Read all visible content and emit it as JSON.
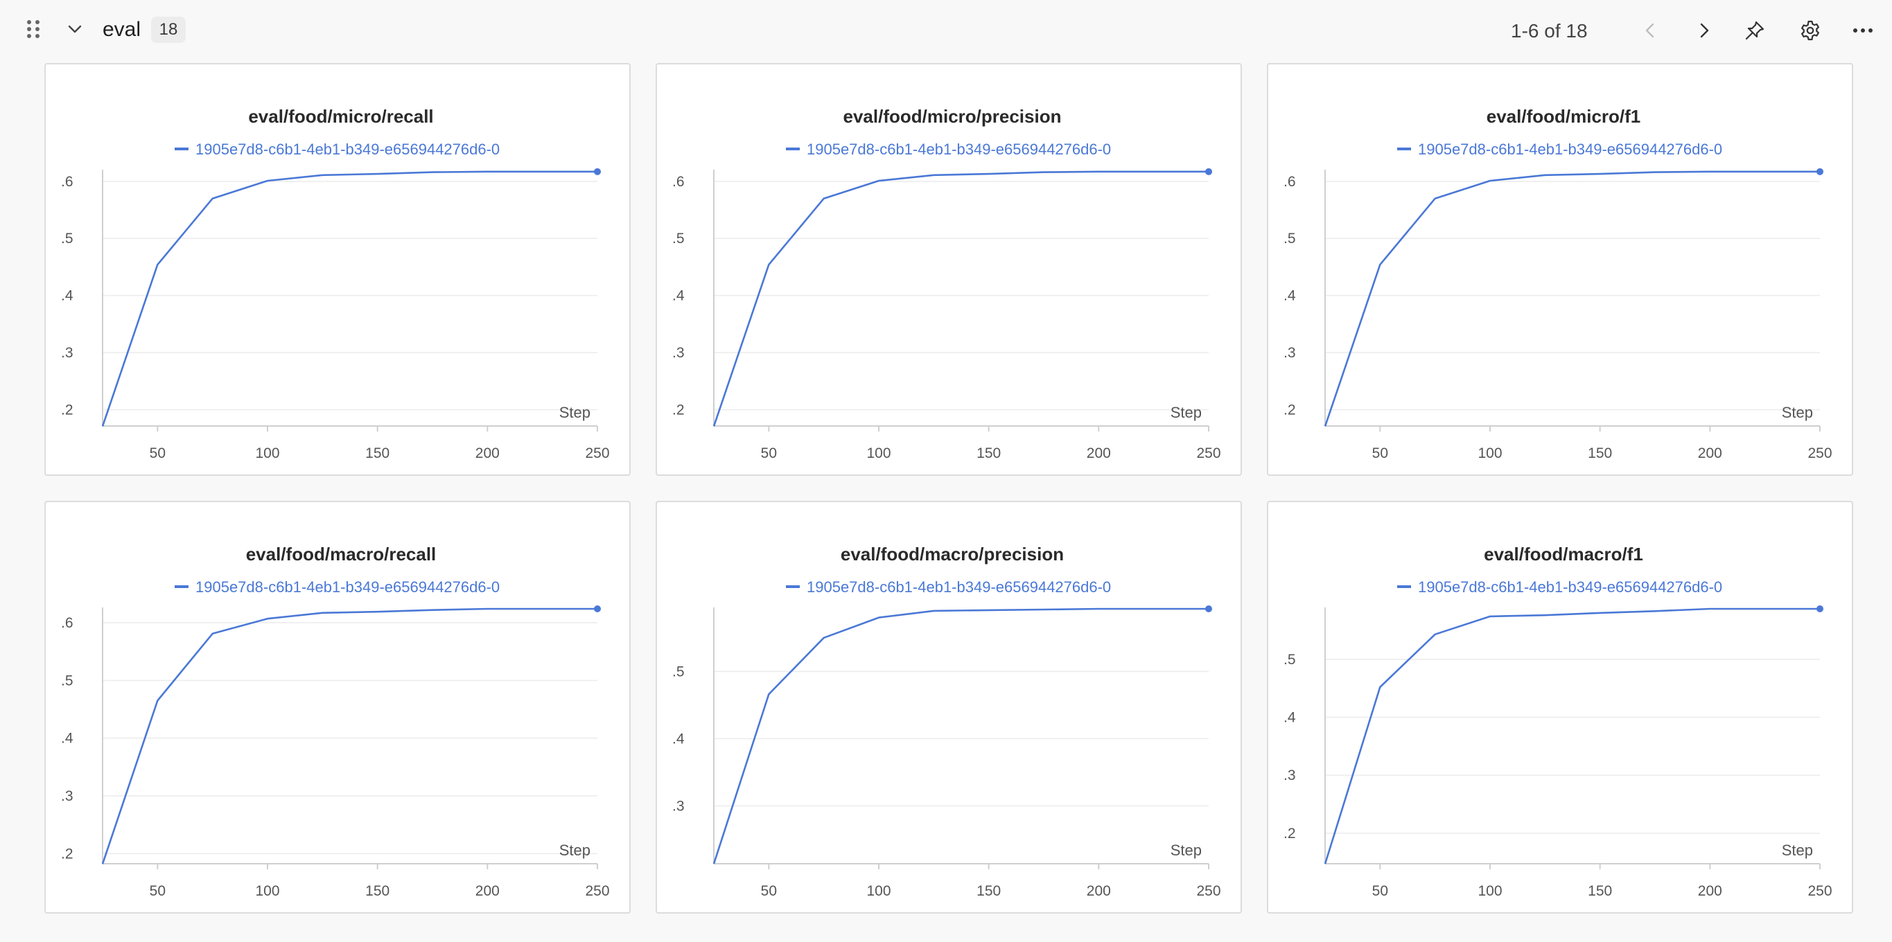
{
  "section": {
    "title": "eval",
    "count": "18",
    "pagination": "1-6 of 18",
    "icons": {
      "drag": "drag-handle-icon",
      "collapse": "chevron-down-icon",
      "prev": "chevron-left-icon",
      "next": "chevron-right-icon",
      "pin": "pin-icon",
      "settings": "gear-icon",
      "more": "more-horizontal-icon"
    }
  },
  "colors": {
    "series": "#4a78d6",
    "grid": "#ebebeb",
    "axis": "#cfcfcf"
  },
  "chart_data": [
    {
      "type": "line",
      "title": "eval/food/micro/recall",
      "xlabel": "Step",
      "x_ticks": [
        50,
        100,
        150,
        200,
        250
      ],
      "y_ticks": [
        0.2,
        0.3,
        0.4,
        0.5,
        0.6
      ],
      "y_tick_labels": [
        ".2",
        ".3",
        ".4",
        ".5",
        ".6"
      ],
      "xlim": [
        25,
        250
      ],
      "ylim": [
        0.169,
        0.618
      ],
      "legend": "top-center",
      "series": [
        {
          "name": "1905e7d8-c6b1-4eb1-b349-e656944276d6-0",
          "x": [
            25,
            50,
            75,
            100,
            125,
            150,
            175,
            200,
            225,
            250
          ],
          "y": [
            0.171,
            0.454,
            0.57,
            0.601,
            0.611,
            0.613,
            0.616,
            0.617,
            0.617,
            0.617
          ]
        }
      ]
    },
    {
      "type": "line",
      "title": "eval/food/micro/precision",
      "xlabel": "Step",
      "x_ticks": [
        50,
        100,
        150,
        200,
        250
      ],
      "y_ticks": [
        0.2,
        0.3,
        0.4,
        0.5,
        0.6
      ],
      "y_tick_labels": [
        ".2",
        ".3",
        ".4",
        ".5",
        ".6"
      ],
      "xlim": [
        25,
        250
      ],
      "ylim": [
        0.169,
        0.618
      ],
      "legend": "top-center",
      "series": [
        {
          "name": "1905e7d8-c6b1-4eb1-b349-e656944276d6-0",
          "x": [
            25,
            50,
            75,
            100,
            125,
            150,
            175,
            200,
            225,
            250
          ],
          "y": [
            0.171,
            0.454,
            0.57,
            0.601,
            0.611,
            0.613,
            0.616,
            0.617,
            0.617,
            0.617
          ]
        }
      ]
    },
    {
      "type": "line",
      "title": "eval/food/micro/f1",
      "xlabel": "Step",
      "x_ticks": [
        50,
        100,
        150,
        200,
        250
      ],
      "y_ticks": [
        0.2,
        0.3,
        0.4,
        0.5,
        0.6
      ],
      "y_tick_labels": [
        ".2",
        ".3",
        ".4",
        ".5",
        ".6"
      ],
      "xlim": [
        25,
        250
      ],
      "ylim": [
        0.169,
        0.618
      ],
      "legend": "top-center",
      "series": [
        {
          "name": "1905e7d8-c6b1-4eb1-b349-e656944276d6-0",
          "x": [
            25,
            50,
            75,
            100,
            125,
            150,
            175,
            200,
            225,
            250
          ],
          "y": [
            0.171,
            0.454,
            0.57,
            0.601,
            0.611,
            0.613,
            0.616,
            0.617,
            0.617,
            0.617
          ]
        }
      ]
    },
    {
      "type": "line",
      "title": "eval/food/macro/recall",
      "xlabel": "Step",
      "x_ticks": [
        50,
        100,
        150,
        200,
        250
      ],
      "y_ticks": [
        0.2,
        0.3,
        0.4,
        0.5,
        0.6
      ],
      "y_tick_labels": [
        ".2",
        ".3",
        ".4",
        ".5",
        ".6"
      ],
      "xlim": [
        25,
        250
      ],
      "ylim": [
        0.18,
        0.624
      ],
      "legend": "top-center",
      "series": [
        {
          "name": "1905e7d8-c6b1-4eb1-b349-e656944276d6-0",
          "x": [
            25,
            50,
            75,
            100,
            125,
            150,
            175,
            200,
            225,
            250
          ],
          "y": [
            0.182,
            0.465,
            0.581,
            0.607,
            0.617,
            0.619,
            0.622,
            0.624,
            0.624,
            0.624
          ]
        }
      ]
    },
    {
      "type": "line",
      "title": "eval/food/macro/precision",
      "xlabel": "Step",
      "x_ticks": [
        50,
        100,
        150,
        200,
        250
      ],
      "y_ticks": [
        0.3,
        0.4,
        0.5
      ],
      "y_tick_labels": [
        ".3",
        ".4",
        ".5"
      ],
      "xlim": [
        25,
        250
      ],
      "ylim": [
        0.212,
        0.593
      ],
      "legend": "top-center",
      "series": [
        {
          "name": "1905e7d8-c6b1-4eb1-b349-e656944276d6-0",
          "x": [
            25,
            50,
            75,
            100,
            125,
            150,
            175,
            200,
            225,
            250
          ],
          "y": [
            0.214,
            0.466,
            0.55,
            0.58,
            0.59,
            0.591,
            0.592,
            0.593,
            0.593,
            0.593
          ]
        }
      ]
    },
    {
      "type": "line",
      "title": "eval/food/macro/f1",
      "xlabel": "Step",
      "x_ticks": [
        50,
        100,
        150,
        200,
        250
      ],
      "y_ticks": [
        0.2,
        0.3,
        0.4,
        0.5
      ],
      "y_tick_labels": [
        ".2",
        ".3",
        ".4",
        ".5"
      ],
      "xlim": [
        25,
        250
      ],
      "ylim": [
        0.145,
        0.587
      ],
      "legend": "top-center",
      "series": [
        {
          "name": "1905e7d8-c6b1-4eb1-b349-e656944276d6-0",
          "x": [
            25,
            50,
            75,
            100,
            125,
            150,
            175,
            200,
            225,
            250
          ],
          "y": [
            0.147,
            0.452,
            0.543,
            0.574,
            0.576,
            0.58,
            0.583,
            0.587,
            0.587,
            0.587
          ]
        }
      ]
    }
  ]
}
